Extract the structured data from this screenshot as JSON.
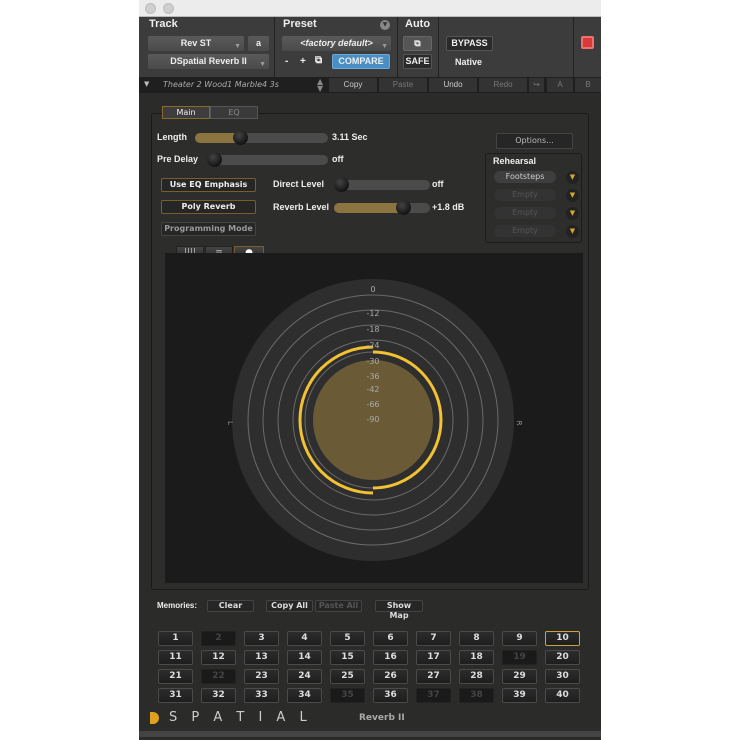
{
  "header": {
    "track_label": "Track",
    "preset_label": "Preset",
    "auto_label": "Auto",
    "track_name": "Rev ST",
    "track_channel": "a",
    "plugin_name": "DSpatial Reverb II",
    "preset_name": "<factory default>",
    "minus": "-",
    "plus": "+",
    "compare": "COMPARE",
    "safe": "SAFE",
    "bypass": "BYPASS",
    "native": "Native",
    "accent": "#4a8fc4"
  },
  "toolbar": {
    "preset_path": "Theater 2 Wood1 Marble4 3s",
    "copy": "Copy",
    "paste": "Paste",
    "undo": "Undo",
    "redo": "Redo",
    "a": "A",
    "b": "B"
  },
  "tabs": [
    {
      "label": "Main",
      "active": true
    },
    {
      "label": "EQ",
      "active": false
    }
  ],
  "controls": {
    "length": {
      "label": "Length",
      "value": "3.11 Sec",
      "fraction": 0.32
    },
    "predelay": {
      "label": "Pre Delay",
      "value": "off",
      "fraction": 0
    },
    "direct": {
      "label": "Direct Level",
      "value": "off",
      "fraction": 0
    },
    "reverb": {
      "label": "Reverb Level",
      "value": "+1.8 dB",
      "fraction": 0.75
    },
    "use_eq": "Use EQ Emphasis",
    "poly": "Poly Reverb",
    "prog": "Programming Mode",
    "options": "Options..."
  },
  "rehearsal": {
    "title": "Rehearsal",
    "slots": [
      "Footsteps",
      "Empty",
      "Empty",
      "Empty"
    ]
  },
  "view_buttons": [
    "|||| ",
    "≡",
    "●"
  ],
  "meter": {
    "ticks": [
      "0",
      "-12",
      "-18",
      "-24",
      "-30",
      "-36",
      "-42",
      "-66",
      "-90"
    ],
    "left": "L",
    "right": "R",
    "accent": "#f2c232"
  },
  "memories": {
    "label": "Memories:",
    "clear": "Clear",
    "copy_all": "Copy All",
    "paste_all": "Paste All",
    "show_map": "Show Map",
    "slots": [
      "1",
      "2",
      "3",
      "4",
      "5",
      "6",
      "7",
      "8",
      "9",
      "10",
      "11",
      "12",
      "13",
      "14",
      "15",
      "16",
      "17",
      "18",
      "19",
      "20",
      "21",
      "22",
      "23",
      "24",
      "25",
      "26",
      "27",
      "28",
      "29",
      "30",
      "31",
      "32",
      "33",
      "34",
      "35",
      "36",
      "37",
      "38",
      "39",
      "40"
    ],
    "disabled": [
      "2",
      "19",
      "22",
      "35",
      "37",
      "38"
    ],
    "selected": "10"
  },
  "brand": {
    "logo": "D",
    "name": "S P A T I A L",
    "product": "Reverb II"
  }
}
